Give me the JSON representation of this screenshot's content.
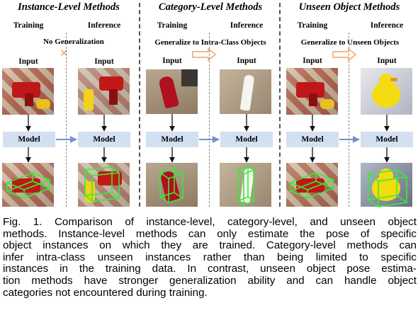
{
  "sections": [
    {
      "title": "Instance-Level Methods",
      "training_label": "Training",
      "inference_label": "Inference",
      "note": "No Generalization",
      "input_training": "Input",
      "input_inference": "Input",
      "model_training": "Model",
      "model_inference": "Model"
    },
    {
      "title": "Category-Level Methods",
      "training_label": "Training",
      "inference_label": "Inference",
      "note": "Generalize to Intra-Class Objects",
      "input_training": "Input",
      "input_inference": "Input",
      "model_training": "Model",
      "model_inference": "Model"
    },
    {
      "title": "Unseen Object Methods",
      "training_label": "Training",
      "inference_label": "Inference",
      "note": "Generalize to Unseen Objects",
      "input_training": "Input",
      "input_inference": "Input",
      "model_training": "Model",
      "model_inference": "Model"
    }
  ],
  "caption_lines": [
    "Fig. 1. Comparison of instance-level, category-level, and unseen object",
    "methods. Instance-level methods can only estimate the pose of specific",
    "object instances on which they are trained. Category-level methods can",
    "infer intra-class unseen instances rather than being limited to specific",
    "instances in the training data. In contrast, unseen object pose estima-",
    "tion methods have stronger generalization ability and can handle object",
    "categories not encountered during training."
  ],
  "colors": {
    "model_box": "#d3e0f1",
    "arrow_blue": "#6f93c8",
    "arrow_orange": "#f0a060",
    "bbox_green": "#33ee33"
  },
  "icons": {
    "no_generalization": "cross-icon"
  }
}
